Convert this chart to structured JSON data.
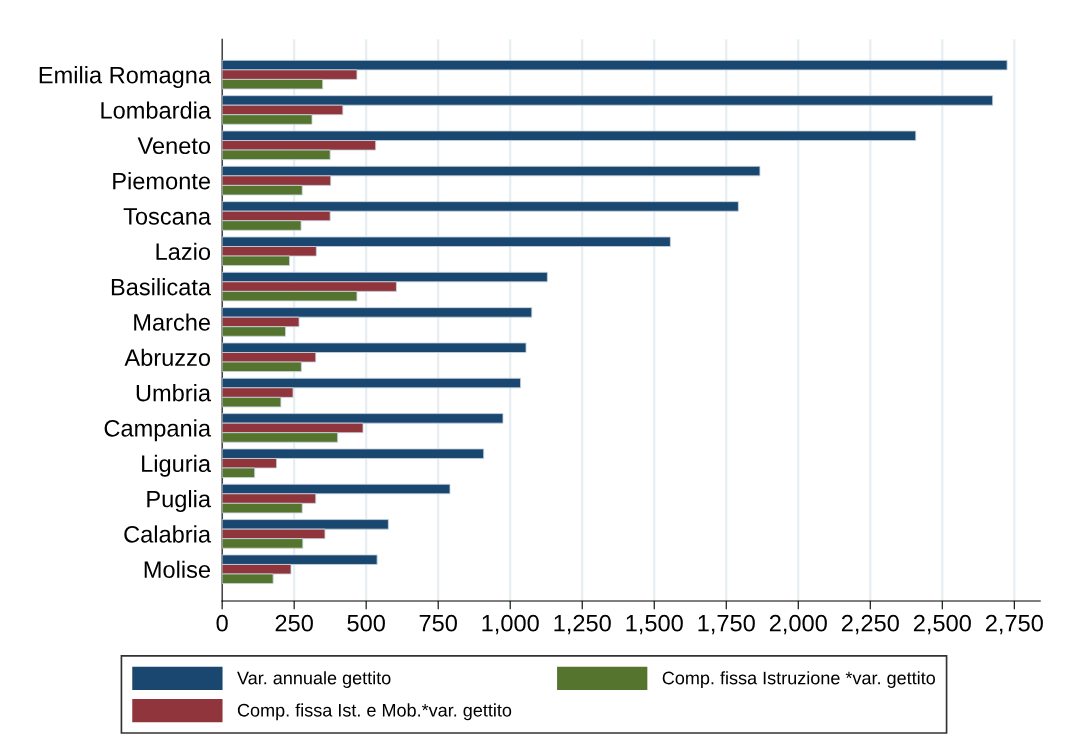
{
  "chart_data": {
    "type": "bar",
    "orientation": "horizontal",
    "categories": [
      "Emilia Romagna",
      "Lombardia",
      "Veneto",
      "Piemonte",
      "Toscana",
      "Lazio",
      "Basilicata",
      "Marche",
      "Abruzzo",
      "Umbria",
      "Campania",
      "Liguria",
      "Puglia",
      "Calabria",
      "Molise"
    ],
    "series": [
      {
        "name": "Var. annuale gettito",
        "color": "#1a476f",
        "values": [
          2725,
          2675,
          2408,
          1867,
          1792,
          1556,
          1129,
          1075,
          1055,
          1036,
          975,
          908,
          791,
          577,
          538
        ]
      },
      {
        "name": "Comp. fissa Ist. e Mob.*var. gettito",
        "color": "#90353b",
        "values": [
          468,
          419,
          533,
          377,
          375,
          327,
          605,
          267,
          325,
          246,
          489,
          189,
          325,
          357,
          239
        ]
      },
      {
        "name": "Comp. fissa Istruzione *var. gettito",
        "color": "#55752f",
        "values": [
          349,
          312,
          375,
          278,
          274,
          234,
          468,
          220,
          275,
          204,
          401,
          113,
          278,
          280,
          177
        ]
      }
    ],
    "xlim": [
      0,
      2840
    ],
    "xticks": [
      0,
      250,
      500,
      750,
      {
        "value": 1000,
        "label": "1,000"
      },
      {
        "value": 1250,
        "label": "1,250"
      },
      {
        "value": 1500,
        "label": "1,500"
      },
      {
        "value": 1750,
        "label": "1,750"
      },
      {
        "value": 2000,
        "label": "2,000"
      },
      {
        "value": 2250,
        "label": "2,250"
      },
      {
        "value": 2500,
        "label": "2,500"
      },
      {
        "value": 2750,
        "label": "2,750"
      }
    ],
    "grid": "x",
    "legend": "bottom"
  }
}
